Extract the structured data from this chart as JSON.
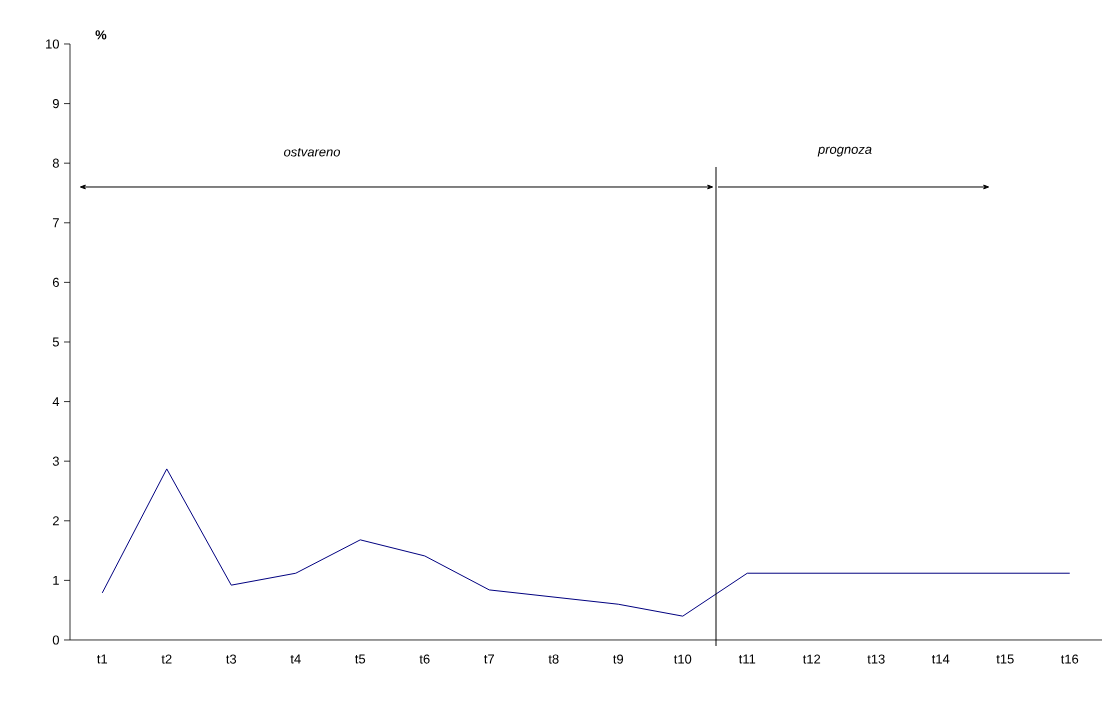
{
  "chart_data": {
    "type": "line",
    "ylabel": "%",
    "categories": [
      "t1",
      "t2",
      "t3",
      "t4",
      "t5",
      "t6",
      "t7",
      "t8",
      "t9",
      "t10",
      "t11",
      "t12",
      "t13",
      "t14",
      "t15",
      "t16"
    ],
    "series": [
      {
        "color": "#000080",
        "values": [
          0.79,
          2.87,
          0.92,
          1.12,
          1.68,
          1.41,
          0.84,
          0.72,
          0.6,
          0.4,
          1.12,
          1.12,
          1.12,
          1.12,
          1.12,
          1.12
        ]
      }
    ],
    "ylim": [
      0,
      10
    ],
    "yticks": [
      0,
      1,
      2,
      3,
      4,
      5,
      6,
      7,
      8,
      9,
      10
    ],
    "grid": false,
    "annotations": [
      "ostvareno",
      "prognoza"
    ]
  }
}
